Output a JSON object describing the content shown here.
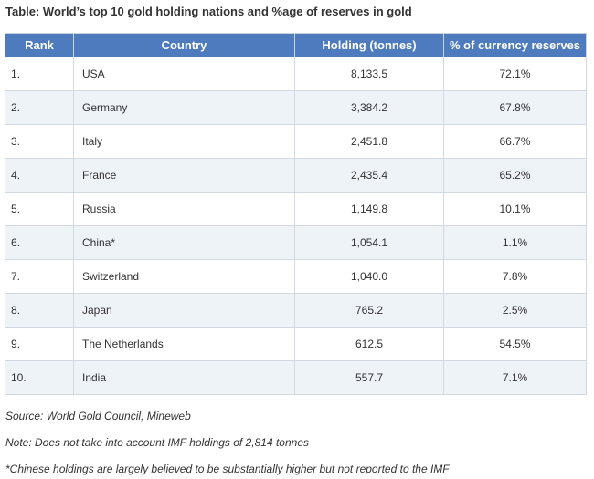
{
  "title": "Table: World’s top 10 gold holding nations and %age of reserves in gold",
  "table": {
    "headers": [
      "Rank",
      "Country",
      "Holding (tonnes)",
      "% of currency reserves"
    ],
    "rows": [
      {
        "rank": "1.",
        "country": "USA",
        "holding": "8,133.5",
        "pct": "72.1%"
      },
      {
        "rank": "2.",
        "country": "Germany",
        "holding": "3,384.2",
        "pct": "67.8%"
      },
      {
        "rank": "3.",
        "country": "Italy",
        "holding": "2,451.8",
        "pct": "66.7%"
      },
      {
        "rank": "4.",
        "country": "France",
        "holding": "2,435.4",
        "pct": "65.2%"
      },
      {
        "rank": "5.",
        "country": "Russia",
        "holding": "1,149.8",
        "pct": "10.1%"
      },
      {
        "rank": "6.",
        "country": "China*",
        "holding": "1,054.1",
        "pct": "1.1%"
      },
      {
        "rank": "7.",
        "country": "Switzerland",
        "holding": "1,040.0",
        "pct": "7.8%"
      },
      {
        "rank": "8.",
        "country": "Japan",
        "holding": "765.2",
        "pct": "2.5%"
      },
      {
        "rank": "9.",
        "country": "The Netherlands",
        "holding": "612.5",
        "pct": "54.5%"
      },
      {
        "rank": "10.",
        "country": "India",
        "holding": "557.7",
        "pct": "7.1%"
      }
    ]
  },
  "notes": {
    "source": "Source: World Gold Council, Mineweb",
    "imf_note": "Note: Does not take into account IMF holdings of 2,814 tonnes",
    "china_note": "*Chinese holdings are largely believed to be substantially higher but not reported to the IMF"
  },
  "colors": {
    "header_bg": "#4d7bbd",
    "alt_row_bg": "#eef3f8",
    "border": "#d2d9e2"
  }
}
